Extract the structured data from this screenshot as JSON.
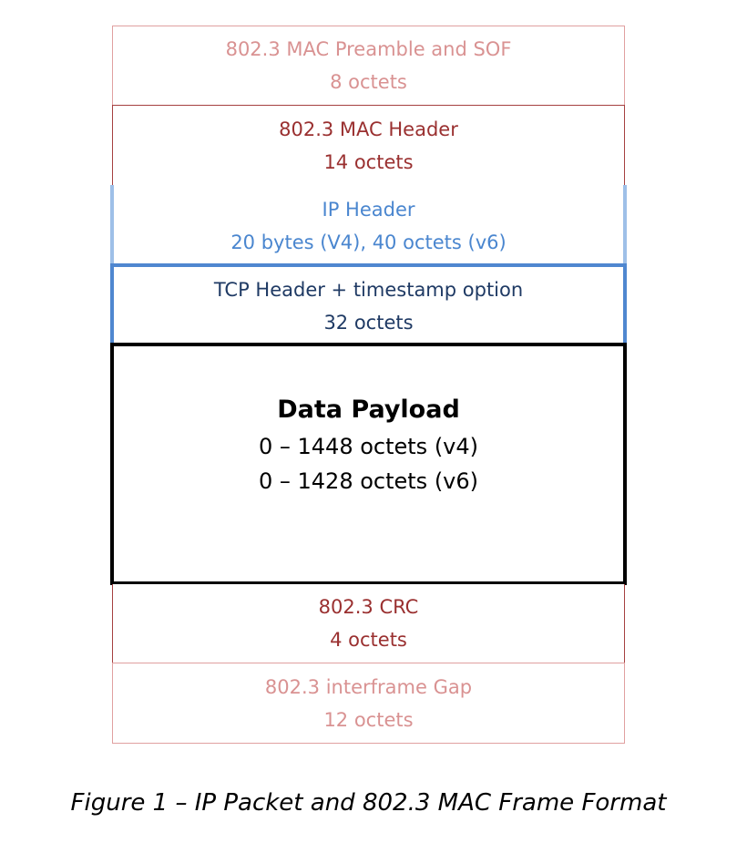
{
  "layers": [
    {
      "title": "802.3 MAC Preamble and SOF",
      "size": "8 octets"
    },
    {
      "title": "802.3 MAC Header",
      "size": "14 octets"
    },
    {
      "title": "IP Header",
      "size": "20 bytes (V4), 40 octets (v6)"
    },
    {
      "title": "TCP Header + timestamp option",
      "size": "32 octets"
    },
    {
      "title": "Data Payload",
      "size": "0 – 1448 octets (v4)",
      "size2": "0 – 1428 octets (v6)"
    },
    {
      "title": "802.3 CRC",
      "size": "4 octets"
    },
    {
      "title": "802.3 interframe Gap",
      "size": "12 octets"
    }
  ],
  "colors": {
    "light_red": "#d99292",
    "dark_red": "#9a3030",
    "light_blue": "#9ec0e8",
    "blue": "#4f87d0",
    "navy": "#1f3a64"
  },
  "caption": "Figure 1 – IP Packet and 802.3 MAC Frame Format"
}
